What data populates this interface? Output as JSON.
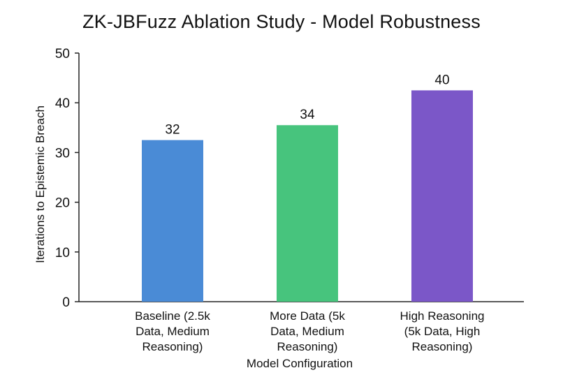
{
  "chart_data": {
    "type": "bar",
    "title": "ZK-JBFuzz Ablation Study - Model Robustness",
    "xlabel": "Model Configuration",
    "ylabel": "Iterations to Epistemic Breach",
    "ylim": [
      0,
      50
    ],
    "yticks": [
      0,
      10,
      20,
      30,
      40,
      50
    ],
    "grid": false,
    "categories": [
      [
        "Baseline (2.5k",
        "Data, Medium",
        "Reasoning)"
      ],
      [
        "More Data (5k",
        "Data, Medium",
        "Reasoning)"
      ],
      [
        "High Reasoning",
        "(5k Data, High",
        "Reasoning)"
      ]
    ],
    "values": [
      32,
      34,
      40
    ],
    "bar_heights_estimated": [
      32.5,
      35.5,
      42.5
    ],
    "colors": [
      "#4a8bd6",
      "#47c47d",
      "#7b57c8"
    ]
  }
}
